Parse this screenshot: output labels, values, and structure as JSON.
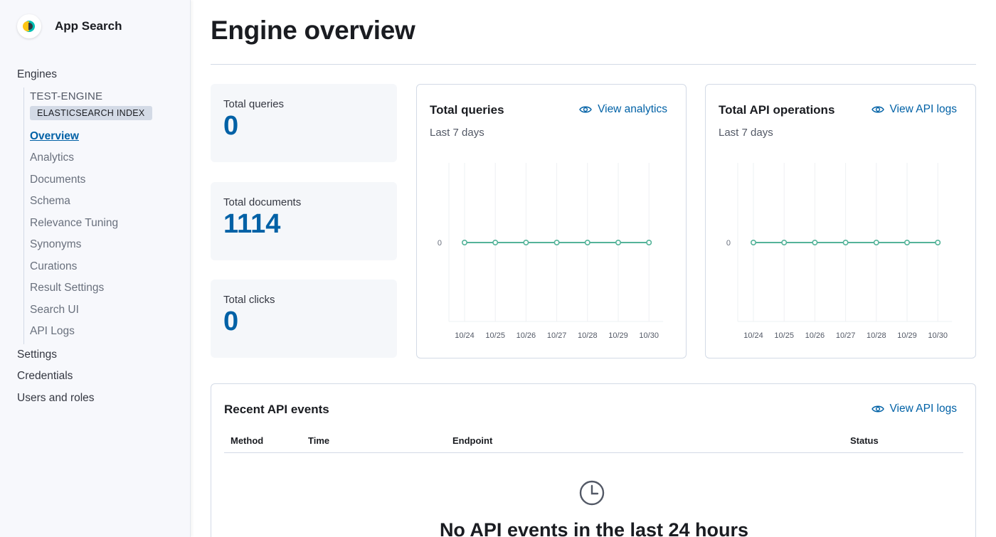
{
  "sidebar": {
    "app_title": "App Search",
    "engines_label": "Engines",
    "engine_name": "TEST-ENGINE",
    "engine_badge": "ELASTICSEARCH INDEX",
    "engine_nav": [
      "Overview",
      "Analytics",
      "Documents",
      "Schema",
      "Relevance Tuning",
      "Synonyms",
      "Curations",
      "Result Settings",
      "Search UI",
      "API Logs"
    ],
    "active_item": "Overview",
    "bottom_nav": [
      "Settings",
      "Credentials",
      "Users and roles"
    ]
  },
  "page": {
    "title": "Engine overview"
  },
  "stats": [
    {
      "label": "Total queries",
      "value": "0"
    },
    {
      "label": "Total documents",
      "value": "1114"
    },
    {
      "label": "Total clicks",
      "value": "0"
    }
  ],
  "queries_panel": {
    "title": "Total queries",
    "subtitle": "Last 7 days",
    "link": "View analytics",
    "link_icon": "eye-icon"
  },
  "api_panel": {
    "title": "Total API operations",
    "subtitle": "Last 7 days",
    "link": "View API logs",
    "link_icon": "eye-icon"
  },
  "chart_data": [
    {
      "type": "line",
      "title": "Total queries",
      "x": [
        "10/24",
        "10/25",
        "10/26",
        "10/27",
        "10/28",
        "10/29",
        "10/30"
      ],
      "series": [
        {
          "values": [
            0,
            0,
            0,
            0,
            0,
            0,
            0
          ]
        }
      ],
      "y_ticks": [
        "0"
      ],
      "grid": "vertical",
      "color": "#54b399"
    },
    {
      "type": "line",
      "title": "Total API operations",
      "x": [
        "10/24",
        "10/25",
        "10/26",
        "10/27",
        "10/28",
        "10/29",
        "10/30"
      ],
      "series": [
        {
          "values": [
            0,
            0,
            0,
            0,
            0,
            0,
            0
          ]
        }
      ],
      "y_ticks": [
        "0"
      ],
      "grid": "vertical",
      "color": "#54b399"
    }
  ],
  "events": {
    "title": "Recent API events",
    "link": "View API logs",
    "columns": [
      "Method",
      "Time",
      "Endpoint",
      "Status"
    ],
    "empty_icon": "clock-icon",
    "empty_title": "No API events in the last 24 hours"
  },
  "colors": {
    "accent": "#0061a6",
    "line": "#54b399"
  }
}
